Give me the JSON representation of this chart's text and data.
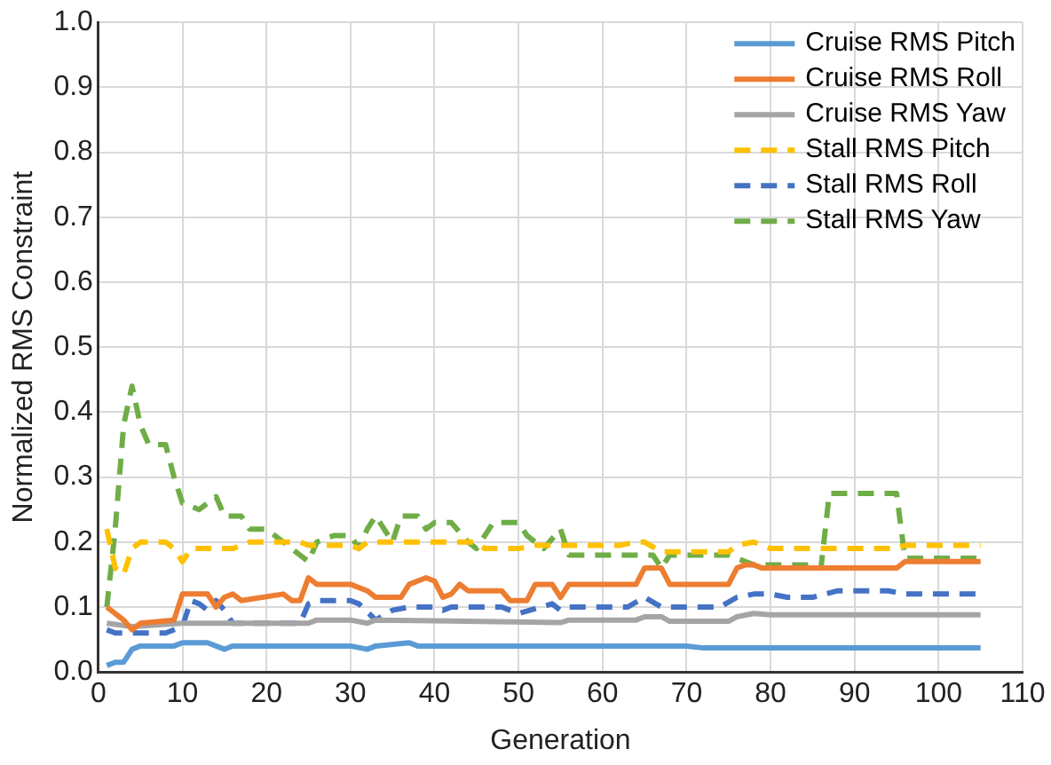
{
  "chart_data": {
    "type": "line",
    "xlabel": "Generation",
    "ylabel": "Normalized RMS Constraint",
    "xlim": [
      0,
      110
    ],
    "xticks": [
      0,
      10,
      20,
      30,
      40,
      50,
      60,
      70,
      80,
      90,
      100,
      110
    ],
    "ylim": [
      0,
      1
    ],
    "yticks": [
      {
        "value": 0,
        "label": "0.0"
      },
      {
        "value": 0.1,
        "label": "0.1"
      },
      {
        "value": 0.2,
        "label": "0.2"
      },
      {
        "value": 0.3,
        "label": "0.3"
      },
      {
        "value": 0.4,
        "label": "0.4"
      },
      {
        "value": 0.5,
        "label": "0.5"
      },
      {
        "value": 0.6,
        "label": "0.6"
      },
      {
        "value": 0.7,
        "label": "0.7"
      },
      {
        "value": 0.8,
        "label": "0.8"
      },
      {
        "value": 0.9,
        "label": "0.9"
      },
      {
        "value": 1,
        "label": "1.0"
      }
    ],
    "grid": true,
    "legend": "top right",
    "marker": "none",
    "series": [
      {
        "name": "Cruise RMS Pitch",
        "color": "#5b9bd5",
        "line_style": "solid",
        "x": [
          1,
          2,
          3,
          4,
          5,
          9,
          10,
          13,
          15,
          16,
          25,
          30,
          32,
          33,
          37,
          38,
          50,
          70,
          72,
          105
        ],
        "values": [
          0.01,
          0.015,
          0.015,
          0.035,
          0.04,
          0.04,
          0.045,
          0.045,
          0.035,
          0.04,
          0.04,
          0.04,
          0.035,
          0.04,
          0.045,
          0.04,
          0.04,
          0.04,
          0.037,
          0.037
        ]
      },
      {
        "name": "Cruise RMS Roll",
        "color": "#ed7d31",
        "line_style": "solid",
        "x": [
          1,
          2,
          3,
          4,
          5,
          9,
          10,
          13,
          14,
          15,
          16,
          17,
          22,
          23,
          24,
          25,
          26,
          30,
          32,
          33,
          36,
          37,
          39,
          40,
          41,
          42,
          43,
          44,
          48,
          49,
          51,
          52,
          54,
          55,
          56,
          64,
          65,
          67,
          68,
          75,
          76,
          77,
          78,
          79,
          95,
          96,
          105
        ],
        "values": [
          0.1,
          0.09,
          0.08,
          0.065,
          0.075,
          0.08,
          0.12,
          0.12,
          0.1,
          0.115,
          0.12,
          0.11,
          0.12,
          0.11,
          0.11,
          0.145,
          0.135,
          0.135,
          0.125,
          0.115,
          0.115,
          0.135,
          0.145,
          0.14,
          0.115,
          0.12,
          0.135,
          0.125,
          0.125,
          0.11,
          0.11,
          0.135,
          0.135,
          0.115,
          0.135,
          0.135,
          0.16,
          0.16,
          0.135,
          0.135,
          0.16,
          0.165,
          0.165,
          0.16,
          0.16,
          0.17,
          0.17
        ]
      },
      {
        "name": "Cruise RMS Yaw",
        "color": "#a5a5a5",
        "line_style": "solid",
        "x": [
          1,
          4,
          10,
          25,
          26,
          30,
          32,
          33,
          55,
          56,
          64,
          65,
          67,
          68,
          75,
          76,
          78,
          80,
          105
        ],
        "values": [
          0.075,
          0.07,
          0.075,
          0.075,
          0.08,
          0.08,
          0.075,
          0.08,
          0.076,
          0.08,
          0.08,
          0.085,
          0.085,
          0.078,
          0.078,
          0.085,
          0.09,
          0.088,
          0.088
        ]
      },
      {
        "name": "Stall RMS Pitch",
        "color": "#ffc000",
        "line_style": "dashed",
        "x": [
          1,
          2,
          3,
          4,
          5,
          8,
          9,
          10,
          11,
          12,
          16,
          18,
          24,
          25,
          30,
          31,
          32,
          45,
          46,
          50,
          52,
          62,
          64,
          65,
          67,
          75,
          76,
          78,
          80,
          95,
          96,
          105
        ],
        "values": [
          0.22,
          0.16,
          0.15,
          0.19,
          0.2,
          0.2,
          0.19,
          0.17,
          0.19,
          0.19,
          0.19,
          0.2,
          0.2,
          0.195,
          0.195,
          0.19,
          0.2,
          0.2,
          0.19,
          0.19,
          0.195,
          0.195,
          0.2,
          0.2,
          0.185,
          0.185,
          0.195,
          0.2,
          0.19,
          0.19,
          0.195,
          0.195
        ]
      },
      {
        "name": "Stall RMS Roll",
        "color": "#4472c4",
        "line_style": "dashed",
        "x": [
          1,
          2,
          8,
          10,
          11,
          12,
          13,
          14,
          15,
          16,
          24,
          25,
          26,
          30,
          31,
          33,
          35,
          37,
          40,
          41,
          42,
          48,
          50,
          54,
          55,
          56,
          63,
          65,
          67,
          74,
          76,
          78,
          80,
          82,
          85,
          88,
          94,
          96,
          105
        ],
        "values": [
          0.065,
          0.06,
          0.06,
          0.07,
          0.11,
          0.105,
          0.095,
          0.11,
          0.095,
          0.075,
          0.075,
          0.105,
          0.11,
          0.11,
          0.105,
          0.08,
          0.095,
          0.1,
          0.1,
          0.095,
          0.1,
          0.1,
          0.09,
          0.105,
          0.095,
          0.1,
          0.1,
          0.115,
          0.1,
          0.1,
          0.115,
          0.12,
          0.12,
          0.115,
          0.115,
          0.125,
          0.125,
          0.12,
          0.12
        ]
      },
      {
        "name": "Stall RMS Yaw",
        "color": "#70ad47",
        "line_style": "dashed",
        "x": [
          1,
          2,
          3,
          4,
          5,
          6,
          8,
          9,
          10,
          12,
          14,
          15,
          17,
          18,
          20,
          22,
          25,
          26,
          28,
          30,
          31,
          32,
          33,
          34,
          35,
          36,
          38,
          39,
          40,
          42,
          44,
          45,
          47,
          50,
          51,
          52,
          53,
          55,
          56,
          66,
          67,
          68,
          75,
          77,
          78,
          85,
          86,
          87,
          95,
          96,
          105
        ],
        "values": [
          0.1,
          0.22,
          0.38,
          0.44,
          0.38,
          0.35,
          0.35,
          0.3,
          0.26,
          0.25,
          0.27,
          0.24,
          0.24,
          0.22,
          0.22,
          0.2,
          0.17,
          0.2,
          0.21,
          0.21,
          0.19,
          0.22,
          0.24,
          0.22,
          0.2,
          0.24,
          0.24,
          0.22,
          0.23,
          0.23,
          0.2,
          0.19,
          0.23,
          0.23,
          0.21,
          0.2,
          0.19,
          0.22,
          0.18,
          0.18,
          0.16,
          0.18,
          0.18,
          0.17,
          0.165,
          0.165,
          0.16,
          0.275,
          0.275,
          0.175,
          0.175
        ]
      }
    ]
  }
}
